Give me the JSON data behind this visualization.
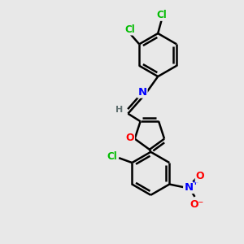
{
  "bg_color": "#e8e8e8",
  "bond_color": "#000000",
  "bond_width": 1.8,
  "atom_colors": {
    "Cl": "#00bb00",
    "N": "#0000ff",
    "O": "#ff0000",
    "H": "#607070"
  },
  "font_size": 8.5,
  "fig_width": 3.0,
  "fig_height": 3.0,
  "dpi": 100
}
